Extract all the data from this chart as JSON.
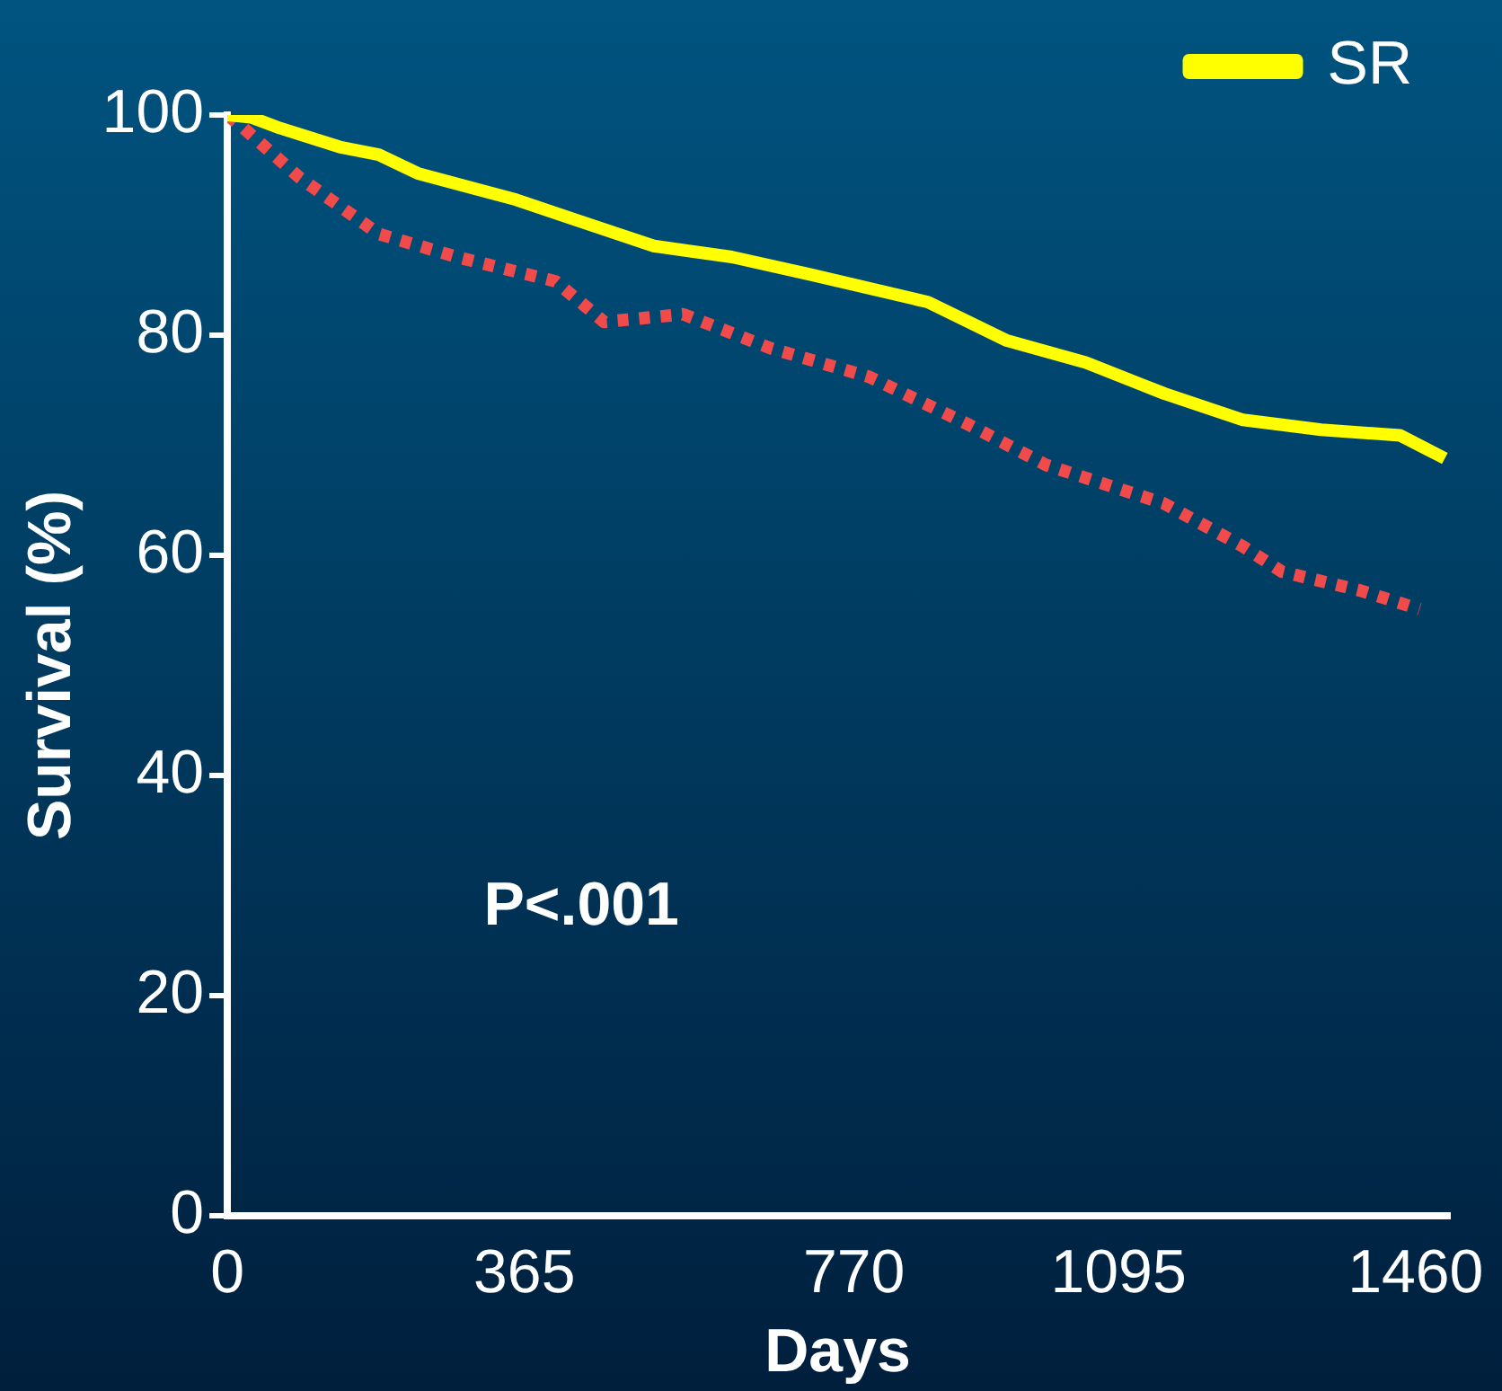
{
  "chart_data": {
    "type": "line",
    "xlabel": "Days",
    "ylabel": "Survival (%)",
    "xlim": [
      0,
      1500
    ],
    "xticks": [
      0,
      365,
      770,
      1095,
      1460
    ],
    "ylim": [
      0,
      100
    ],
    "yticks": [
      0,
      20,
      40,
      60,
      80,
      100
    ],
    "grid": false,
    "legend": "top right",
    "marker": "none",
    "annotations": [
      {
        "text": "P<.001"
      }
    ],
    "series": [
      {
        "name": "SR",
        "color": "#ffff00",
        "line_style": "solid",
        "x": [
          0,
          29,
          65,
          138,
          186,
          234,
          355,
          427,
          524,
          620,
          717,
          861,
          958,
          1055,
          1151,
          1248,
          1344,
          1441,
          1496
        ],
        "values": [
          100,
          99.8,
          98.8,
          97.1,
          96.4,
          94.7,
          92.3,
          90.5,
          88.1,
          87.1,
          85.5,
          83,
          79.5,
          77.5,
          74.7,
          72.3,
          71.4,
          70.9,
          68.8
        ]
      },
      {
        "color": "#f04a4a",
        "line_style": "dotted",
        "x": [
          0,
          17,
          89,
          186,
          282,
          403,
          463,
          560,
          668,
          789,
          910,
          1006,
          1151,
          1248,
          1296,
          1392,
          1465
        ],
        "values": [
          100,
          99,
          94.3,
          89.2,
          87.1,
          84.9,
          81.2,
          81.9,
          78.8,
          76.2,
          71.9,
          68.2,
          64.7,
          60.8,
          58.5,
          56.8,
          55.1
        ]
      }
    ]
  }
}
